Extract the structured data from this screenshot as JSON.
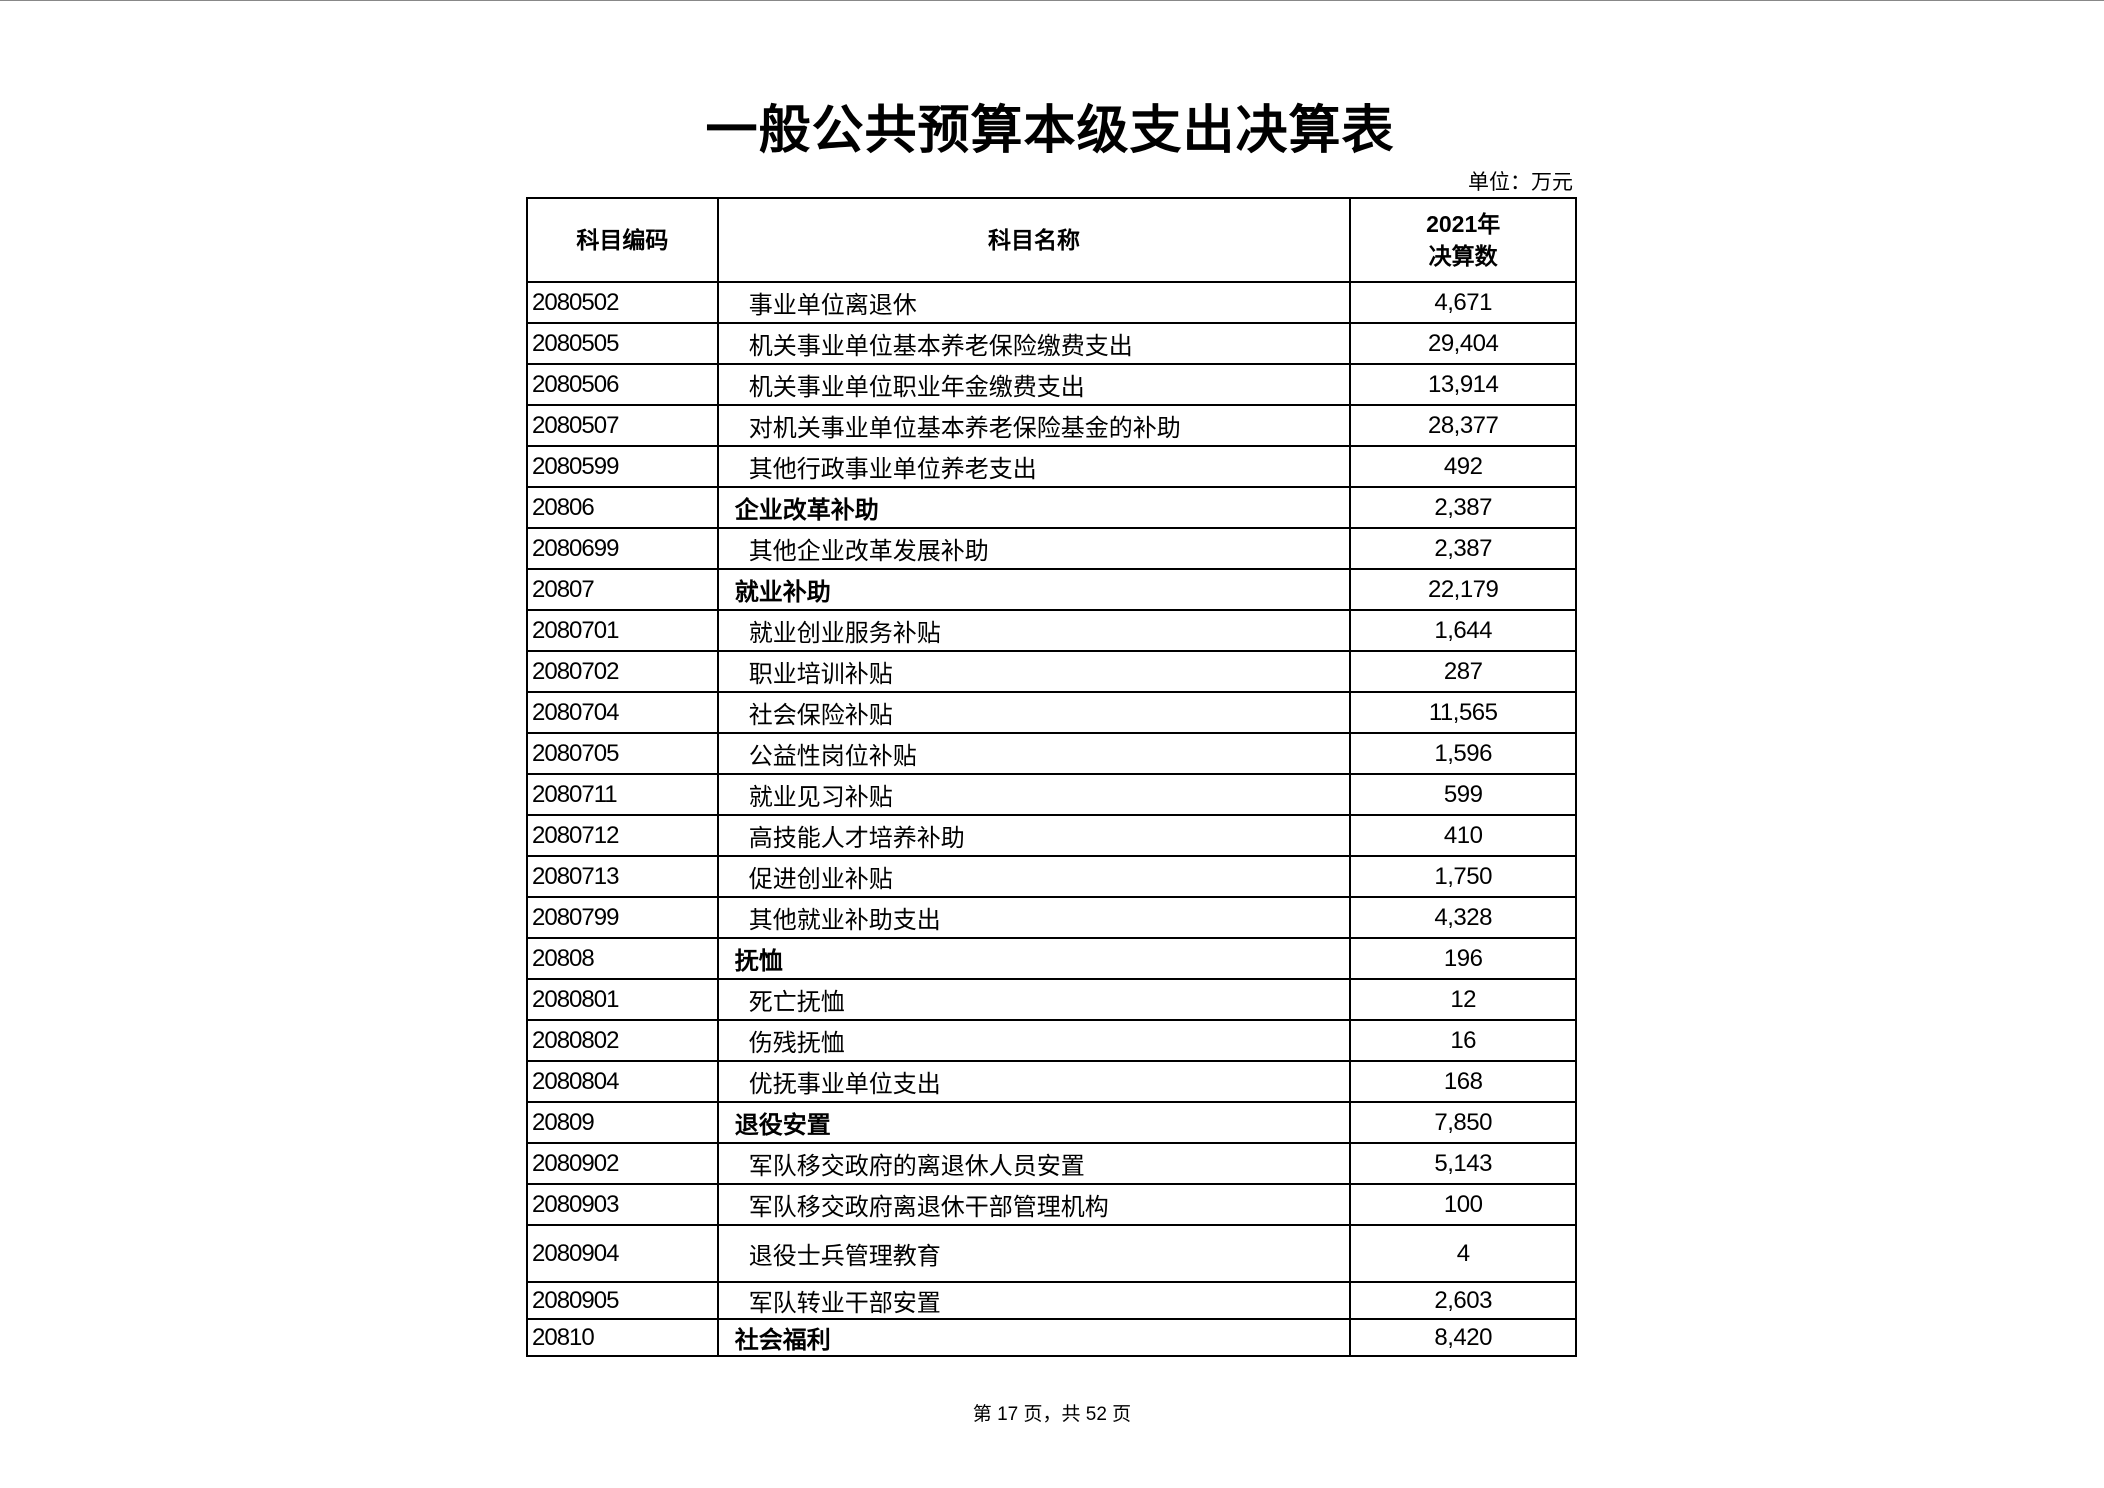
{
  "title": "一般公共预算本级支出决算表",
  "unit": "单位：万元",
  "headers": {
    "code": "科目编码",
    "name": "科目名称",
    "amount_line1": "2021年",
    "amount_line2": "决算数"
  },
  "rows": [
    {
      "code": "2080502",
      "name": "事业单位离退休",
      "amount": "4,671",
      "bold": false
    },
    {
      "code": "2080505",
      "name": "机关事业单位基本养老保险缴费支出",
      "amount": "29,404",
      "bold": false
    },
    {
      "code": "2080506",
      "name": "机关事业单位职业年金缴费支出",
      "amount": "13,914",
      "bold": false
    },
    {
      "code": "2080507",
      "name": "对机关事业单位基本养老保险基金的补助",
      "amount": "28,377",
      "bold": false
    },
    {
      "code": "2080599",
      "name": "其他行政事业单位养老支出",
      "amount": "492",
      "bold": false
    },
    {
      "code": "20806",
      "name": "企业改革补助",
      "amount": "2,387",
      "bold": true
    },
    {
      "code": "2080699",
      "name": "其他企业改革发展补助",
      "amount": "2,387",
      "bold": false
    },
    {
      "code": "20807",
      "name": "就业补助",
      "amount": "22,179",
      "bold": true
    },
    {
      "code": "2080701",
      "name": "就业创业服务补贴",
      "amount": "1,644",
      "bold": false
    },
    {
      "code": "2080702",
      "name": "职业培训补贴",
      "amount": "287",
      "bold": false
    },
    {
      "code": "2080704",
      "name": "社会保险补贴",
      "amount": "11,565",
      "bold": false
    },
    {
      "code": "2080705",
      "name": "公益性岗位补贴",
      "amount": "1,596",
      "bold": false
    },
    {
      "code": "2080711",
      "name": "就业见习补贴",
      "amount": "599",
      "bold": false
    },
    {
      "code": "2080712",
      "name": "高技能人才培养补助",
      "amount": "410",
      "bold": false
    },
    {
      "code": "2080713",
      "name": "促进创业补贴",
      "amount": "1,750",
      "bold": false
    },
    {
      "code": "2080799",
      "name": "其他就业补助支出",
      "amount": "4,328",
      "bold": false
    },
    {
      "code": "20808",
      "name": "抚恤",
      "amount": "196",
      "bold": true
    },
    {
      "code": "2080801",
      "name": "死亡抚恤",
      "amount": "12",
      "bold": false
    },
    {
      "code": "2080802",
      "name": "伤残抚恤",
      "amount": "16",
      "bold": false
    },
    {
      "code": "2080804",
      "name": "优抚事业单位支出",
      "amount": "168",
      "bold": false
    },
    {
      "code": "20809",
      "name": "退役安置",
      "amount": "7,850",
      "bold": true
    },
    {
      "code": "2080902",
      "name": "军队移交政府的离退休人员安置",
      "amount": "5,143",
      "bold": false
    },
    {
      "code": "2080903",
      "name": "军队移交政府离退休干部管理机构",
      "amount": "100",
      "bold": false
    },
    {
      "code": "2080904",
      "name": "退役士兵管理教育",
      "amount": "4",
      "bold": false
    },
    {
      "code": "2080905",
      "name": "军队转业干部安置",
      "amount": "2,603",
      "bold": false
    },
    {
      "code": "20810",
      "name": "社会福利",
      "amount": "8,420",
      "bold": true
    }
  ],
  "footer": "第 17 页，共 52 页"
}
